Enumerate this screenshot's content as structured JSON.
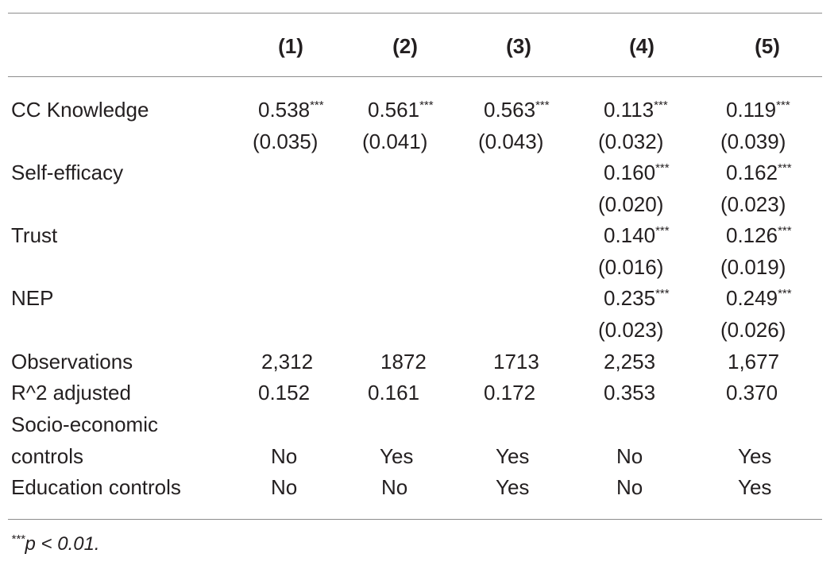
{
  "columns": [
    "(1)",
    "(2)",
    "(3)",
    "(4)",
    "(5)"
  ],
  "rows": {
    "cc_knowledge": {
      "label": "CC Knowledge",
      "coef": [
        "0.538",
        "0.561",
        "0.563",
        "0.113",
        "0.119"
      ],
      "stars": [
        "***",
        "***",
        "***",
        "***",
        "***"
      ],
      "se": [
        "(0.035)",
        "(0.041)",
        "(0.043)",
        "(0.032)",
        "(0.039)"
      ]
    },
    "self_efficacy": {
      "label": "Self-efficacy",
      "coef": [
        "0.160",
        "0.162"
      ],
      "stars": [
        "***",
        "***"
      ],
      "se": [
        "(0.020)",
        "(0.023)"
      ]
    },
    "trust": {
      "label": "Trust",
      "coef": [
        "0.140",
        "0.126"
      ],
      "stars": [
        "***",
        "***"
      ],
      "se": [
        "(0.016)",
        "(0.019)"
      ]
    },
    "nep": {
      "label": "NEP",
      "coef": [
        "0.235",
        "0.249"
      ],
      "stars": [
        "***",
        "***"
      ],
      "se": [
        "(0.023)",
        "(0.026)"
      ]
    },
    "observations": {
      "label": "Observations",
      "values": [
        "2,312",
        "1872",
        "1713",
        "2,253",
        "1,677"
      ]
    },
    "r2": {
      "label": "R^2 adjusted",
      "values": [
        "0.152",
        "0.161",
        "0.172",
        "0.353",
        "0.370"
      ]
    },
    "socio": {
      "label_line1": "Socio-economic",
      "label_line2": "controls",
      "values": [
        "No",
        "Yes",
        "Yes",
        "No",
        "Yes"
      ]
    },
    "education": {
      "label": "Education controls",
      "values": [
        "No",
        "No",
        "Yes",
        "No",
        "Yes"
      ]
    }
  },
  "note": {
    "stars": "***",
    "text": "p < 0.01."
  }
}
